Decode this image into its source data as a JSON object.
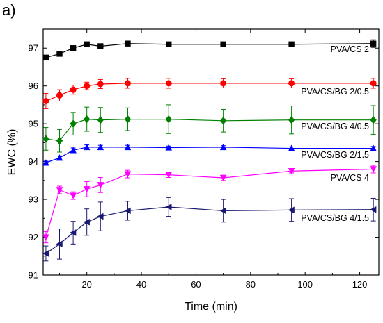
{
  "panel_label": "a)",
  "chart_data": {
    "type": "line",
    "xlabel": "Time (min)",
    "ylabel": "EWC (%)",
    "xlim": [
      4,
      127
    ],
    "ylim": [
      91,
      97.5
    ],
    "xticks": [
      20,
      40,
      60,
      80,
      100,
      120
    ],
    "yticks": [
      91,
      92,
      93,
      94,
      95,
      96,
      97
    ],
    "x": [
      5,
      10,
      15,
      20,
      25,
      35,
      50,
      70,
      95,
      125
    ],
    "series": [
      {
        "name": "PVA/CS 2",
        "color": "#000000",
        "marker": "square",
        "values": [
          96.75,
          96.85,
          97.0,
          97.1,
          97.05,
          97.12,
          97.1,
          97.1,
          97.1,
          97.12
        ],
        "errors": [
          0,
          0,
          0,
          0,
          0,
          0,
          0,
          0,
          0,
          0.1
        ]
      },
      {
        "name": "PVA/CS/BG 2/0.5",
        "color": "#ff0000",
        "marker": "circle",
        "values": [
          95.6,
          95.75,
          95.9,
          96.0,
          96.05,
          96.07,
          96.07,
          96.07,
          96.07,
          96.07
        ],
        "errors": [
          0.2,
          0.15,
          0.12,
          0.1,
          0.12,
          0.13,
          0.13,
          0.12,
          0.12,
          0.13
        ]
      },
      {
        "name": "PVA/CS/BG 4/0.5",
        "color": "#008000",
        "marker": "diamond",
        "values": [
          94.6,
          94.55,
          95.0,
          95.12,
          95.1,
          95.12,
          95.12,
          95.08,
          95.1,
          95.1
        ],
        "errors": [
          0.3,
          0.3,
          0.3,
          0.32,
          0.33,
          0.3,
          0.38,
          0.3,
          0.37,
          0.38
        ]
      },
      {
        "name": "PVA/CS/BG 2/1.5",
        "color": "#0000ff",
        "marker": "triangle-up",
        "values": [
          93.97,
          94.1,
          94.3,
          94.38,
          94.38,
          94.38,
          94.37,
          94.38,
          94.35,
          94.35
        ],
        "errors": [
          0.04,
          0.05,
          0.06,
          0.06,
          0.05,
          0.05,
          0.04,
          0.04,
          0.04,
          0.05
        ]
      },
      {
        "name": "PVA/CS 4",
        "color": "#ff00ff",
        "marker": "triangle-down",
        "values": [
          92.0,
          93.25,
          93.1,
          93.27,
          93.38,
          93.67,
          93.65,
          93.57,
          93.75,
          93.8
        ],
        "errors": [
          0.15,
          0.1,
          0.1,
          0.2,
          0.2,
          0.1,
          0.07,
          0.07,
          0.05,
          0.1
        ]
      },
      {
        "name": "PVA/CS/BG 4/1.5",
        "color": "#191970",
        "marker": "triangle-left",
        "values": [
          91.57,
          91.82,
          92.12,
          92.4,
          92.55,
          92.7,
          92.8,
          92.7,
          92.72,
          92.73
        ],
        "errors": [
          0.2,
          0.4,
          0.3,
          0.35,
          0.38,
          0.25,
          0.25,
          0.3,
          0.3,
          0.3
        ]
      }
    ]
  }
}
